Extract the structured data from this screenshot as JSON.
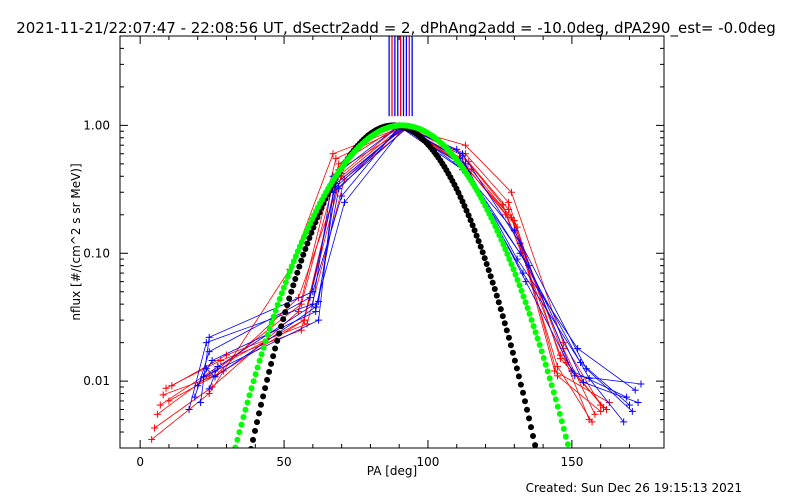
{
  "chart_data": {
    "type": "line",
    "title": "2021-11-21/22:07:47 - 22:08:56 UT, dSectr2add = 2, dPhAng2add = -10.0deg, dPA290_est= -0.0deg",
    "xlabel": "PA [deg]",
    "ylabel": "nflux [#/(cm^2 s sr MeV)]",
    "xlim": [
      -7,
      182
    ],
    "ylim": [
      0.003,
      5
    ],
    "yscale": "log",
    "x_ticks": [
      {
        "v": 0,
        "label": "0"
      },
      {
        "v": 50,
        "label": "50"
      },
      {
        "v": 100,
        "label": "100"
      },
      {
        "v": 150,
        "label": "150"
      }
    ],
    "y_ticks": [
      {
        "v": 0.01,
        "label": "0.01"
      },
      {
        "v": 0.1,
        "label": "0.10"
      },
      {
        "v": 1.0,
        "label": "1.00"
      }
    ],
    "footer": "Created: Sun Dec 26 19:15:13 2021",
    "colors": {
      "red": "#ff0000",
      "blue": "#0000ff",
      "green": "#00ff00",
      "black": "#000000"
    },
    "series": [
      {
        "color": "red",
        "x": [
          4,
          24,
          52,
          67,
          91,
          113,
          129,
          147,
          160
        ],
        "y": [
          0.0035,
          0.008,
          0.075,
          0.6,
          0.97,
          0.7,
          0.3,
          0.02,
          0.0065
        ]
      },
      {
        "color": "red",
        "x": [
          5,
          25,
          55,
          68,
          92,
          113,
          128,
          146,
          162
        ],
        "y": [
          0.0043,
          0.009,
          0.035,
          0.55,
          0.98,
          0.6,
          0.25,
          0.015,
          0.006
        ]
      },
      {
        "color": "red",
        "x": [
          6,
          24,
          56,
          69,
          90,
          111,
          127,
          147,
          158
        ],
        "y": [
          0.0055,
          0.011,
          0.04,
          0.5,
          0.99,
          0.55,
          0.2,
          0.018,
          0.0055
        ]
      },
      {
        "color": "red",
        "x": [
          7,
          27,
          57,
          69,
          93,
          112,
          130,
          144,
          163
        ],
        "y": [
          0.0065,
          0.013,
          0.03,
          0.45,
          0.96,
          0.5,
          0.18,
          0.012,
          0.0068
        ]
      },
      {
        "color": "red",
        "x": [
          8,
          26,
          55,
          70,
          91,
          114,
          128,
          148,
          156
        ],
        "y": [
          0.0078,
          0.011,
          0.045,
          0.4,
          0.98,
          0.52,
          0.22,
          0.014,
          0.005
        ]
      },
      {
        "color": "red",
        "x": [
          9,
          28,
          56,
          68,
          92,
          113,
          131,
          145,
          160
        ],
        "y": [
          0.0088,
          0.0145,
          0.025,
          0.35,
          0.97,
          0.48,
          0.16,
          0.011,
          0.0058
        ]
      },
      {
        "color": "red",
        "x": [
          10,
          29,
          57,
          70,
          90,
          115,
          129,
          145,
          157
        ],
        "y": [
          0.007,
          0.012,
          0.03,
          0.42,
          0.99,
          0.45,
          0.19,
          0.013,
          0.0048
        ]
      },
      {
        "color": "red",
        "x": [
          11,
          30,
          58,
          71,
          93,
          112,
          126,
          146,
          161
        ],
        "y": [
          0.0092,
          0.016,
          0.028,
          0.38,
          0.96,
          0.58,
          0.24,
          0.016,
          0.0062
        ]
      },
      {
        "color": "blue",
        "x": [
          17,
          23,
          60,
          67,
          90,
          110,
          131,
          152,
          172
        ],
        "y": [
          0.006,
          0.02,
          0.04,
          0.4,
          0.99,
          0.65,
          0.09,
          0.018,
          0.0085
        ]
      },
      {
        "color": "blue",
        "x": [
          19,
          24,
          59,
          68,
          92,
          112,
          132,
          150,
          169
        ],
        "y": [
          0.0075,
          0.017,
          0.045,
          0.35,
          0.98,
          0.6,
          0.12,
          0.012,
          0.0075
        ]
      },
      {
        "color": "blue",
        "x": [
          20,
          25,
          61,
          69,
          91,
          111,
          133,
          153,
          170
        ],
        "y": [
          0.0092,
          0.0145,
          0.035,
          0.32,
          0.99,
          0.55,
          0.07,
          0.014,
          0.0065
        ]
      },
      {
        "color": "blue",
        "x": [
          22,
          26,
          62,
          67,
          93,
          113,
          134,
          151,
          174
        ],
        "y": [
          0.0108,
          0.012,
          0.03,
          0.3,
          0.97,
          0.5,
          0.06,
          0.011,
          0.0095
        ]
      },
      {
        "color": "blue",
        "x": [
          21,
          24,
          60,
          70,
          90,
          112,
          130,
          155,
          171
        ],
        "y": [
          0.0068,
          0.022,
          0.05,
          0.28,
          0.98,
          0.45,
          0.15,
          0.0125,
          0.0058
        ]
      },
      {
        "color": "blue",
        "x": [
          23,
          26,
          61,
          71,
          92,
          114,
          132,
          156,
          168
        ],
        "y": [
          0.0125,
          0.0108,
          0.038,
          0.25,
          0.99,
          0.42,
          0.1,
          0.0105,
          0.0048
        ]
      },
      {
        "color": "blue",
        "x": [
          24,
          27,
          62,
          68,
          91,
          110,
          135,
          154,
          173
        ],
        "y": [
          0.0087,
          0.013,
          0.042,
          0.33,
          0.96,
          0.52,
          0.08,
          0.0098,
          0.0068
        ]
      }
    ],
    "model_curves": [
      {
        "color": "black",
        "center": 88,
        "sigma": 14.5,
        "peak": 1.0
      },
      {
        "color": "green",
        "center": 91,
        "sigma": 17,
        "peak": 1.0
      }
    ],
    "vertical_marks_x": [
      86.5,
      87.5,
      88.5,
      89.5,
      90.5,
      91.5,
      92.5,
      93.5,
      94.5
    ]
  }
}
